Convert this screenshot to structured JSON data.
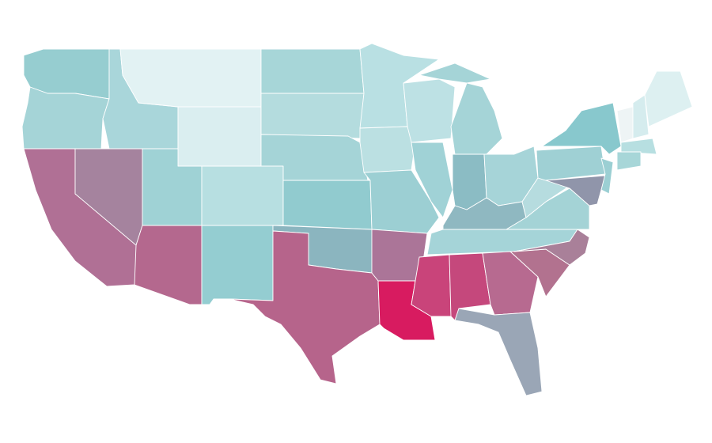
{
  "map": {
    "regions": [
      {
        "fill": "#96cdd0"
      },
      {
        "fill": "#a5d4d7"
      },
      {
        "fill": "#b07095"
      },
      {
        "fill": "#a5839e"
      },
      {
        "fill": "#a9d6da"
      },
      {
        "fill": "#e2f2f3"
      },
      {
        "fill": "#daeef0"
      },
      {
        "fill": "#9fd2d5"
      },
      {
        "fill": "#b7dfe1"
      },
      {
        "fill": "#b4688e"
      },
      {
        "fill": "#94cdd1"
      },
      {
        "fill": "#a7d6d8"
      },
      {
        "fill": "#b4dcde"
      },
      {
        "fill": "#a5d4d7"
      },
      {
        "fill": "#91cbcf"
      },
      {
        "fill": "#8bb5bf"
      },
      {
        "fill": "#b6648b"
      },
      {
        "fill": "#b9e0e3"
      },
      {
        "fill": "#bbe0e2"
      },
      {
        "fill": "#9ccfd3"
      },
      {
        "fill": "#ab7598"
      },
      {
        "fill": "#d81b60"
      },
      {
        "fill": "#bde1e4"
      },
      {
        "fill": "#a0d2d6"
      },
      {
        "fill": "#a5d4d7"
      },
      {
        "fill": "#a5d4d7"
      },
      {
        "fill": "#8bbcc4"
      },
      {
        "fill": "#a6d4d8"
      },
      {
        "fill": "#8fb8c1"
      },
      {
        "fill": "#a5d4d8"
      },
      {
        "fill": "#c9447a"
      },
      {
        "fill": "#c5487c"
      },
      {
        "fill": "#b76a90"
      },
      {
        "fill": "#9aa6b6"
      },
      {
        "fill": "#b2728f"
      },
      {
        "fill": "#a98099"
      },
      {
        "fill": "#a4d3d6"
      },
      {
        "fill": "#b6dcdf"
      },
      {
        "fill": "#9fd0d4"
      },
      {
        "fill": "#88c8cd"
      },
      {
        "fill": "#9095aa"
      },
      {
        "fill": "#9bcfd3"
      },
      {
        "fill": "#eef4f5"
      },
      {
        "fill": "#d5ecee"
      },
      {
        "fill": "#ddf0f1"
      },
      {
        "fill": "#b7dfe1"
      },
      {
        "fill": "#a7d6d8"
      }
    ]
  }
}
